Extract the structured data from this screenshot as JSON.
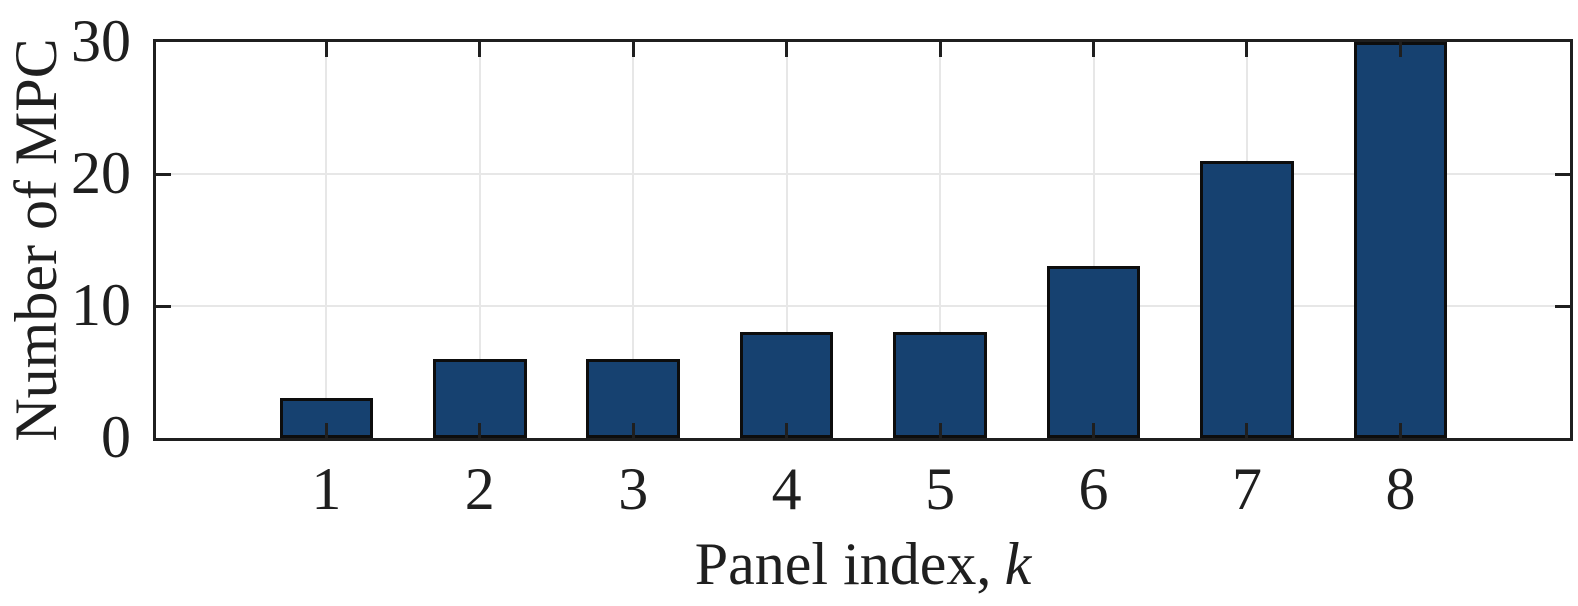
{
  "figure": {
    "ylabel": "Number of MPC",
    "xlabel_prefix": "Panel index,",
    "xlabel_variable": "k"
  },
  "chart_data": {
    "type": "bar",
    "categories": [
      1,
      2,
      3,
      4,
      5,
      6,
      7,
      8
    ],
    "values": [
      3,
      6,
      6,
      8,
      8,
      13,
      21,
      30
    ],
    "title": "",
    "xlabel": "Panel index, k",
    "ylabel": "Number of MPC",
    "xlim": [
      -0.11,
      9.105
    ],
    "ylim": [
      0,
      30
    ],
    "yticks": [
      0,
      10,
      20,
      30
    ],
    "grid": true,
    "legend": "none",
    "bar_width_units": 0.61,
    "colors": {
      "bar_fill": "#164170",
      "bar_edge": "#0d0d0d",
      "grid": "#e7e7e7",
      "axis": "#1f1f1f",
      "text": "#1f1f1f",
      "background": "#ffffff"
    }
  }
}
